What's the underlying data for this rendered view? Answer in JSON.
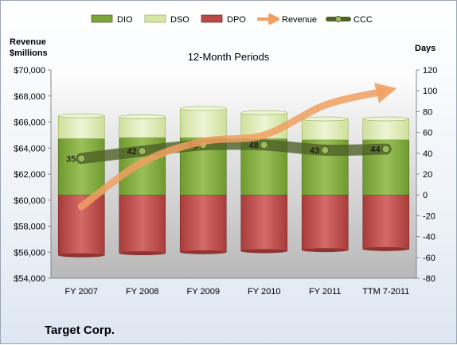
{
  "chart_data": {
    "type": "bar",
    "title": "12-Month Periods",
    "footer": "Target Corp.",
    "left_axis_label": [
      "Revenue",
      "$millions"
    ],
    "right_axis_label": "Days",
    "categories": [
      "FY 2007",
      "FY 2008",
      "FY 2009",
      "FY 2010",
      "FY 2011",
      "TTM 7-2011"
    ],
    "left_ylim": [
      54000,
      70000
    ],
    "left_ticks": [
      "$54,000",
      "$56,000",
      "$58,000",
      "$60,000",
      "$62,000",
      "$64,000",
      "$66,000",
      "$68,000",
      "$70,000"
    ],
    "right_ylim": [
      -80,
      120
    ],
    "right_ticks": [
      "-80",
      "-60",
      "-40",
      "-20",
      "0",
      "20",
      "40",
      "60",
      "80",
      "100",
      "120"
    ],
    "grid": false,
    "legend_position": "top",
    "series": [
      {
        "name": "DIO",
        "axis": "right",
        "kind": "stacked-bar",
        "values": [
          54,
          55,
          55,
          54,
          53,
          53
        ],
        "color": "#7ea43c"
      },
      {
        "name": "DSO",
        "axis": "right",
        "kind": "stacked-bar",
        "values": [
          22,
          20,
          28,
          25,
          20,
          20
        ],
        "color": "#d6e6a6"
      },
      {
        "name": "DPO",
        "axis": "right",
        "kind": "stacked-bar-negative",
        "values": [
          -58,
          -56,
          -55,
          -54,
          -53,
          -52
        ],
        "color": "#b94a48"
      },
      {
        "name": "Revenue",
        "axis": "left",
        "kind": "arrow-line",
        "values": [
          59500,
          62900,
          64500,
          65000,
          67300,
          68400
        ],
        "color": "#f0a060"
      },
      {
        "name": "CCC",
        "axis": "right",
        "kind": "line",
        "values": [
          35,
          42,
          48,
          48,
          43,
          44
        ],
        "labels": [
          "35",
          "42",
          "48",
          "48",
          "43",
          "44"
        ],
        "color": "#4f6228"
      }
    ]
  }
}
